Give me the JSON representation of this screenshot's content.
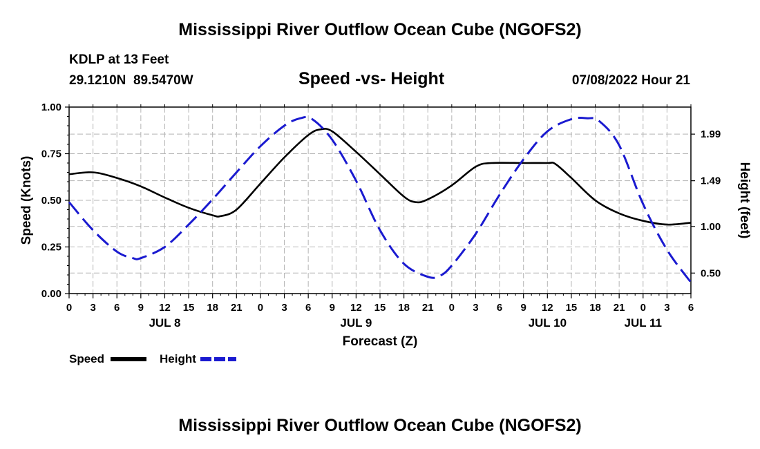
{
  "page": {
    "title_top": "Mississippi River Outflow Ocean Cube (NGOFS2)",
    "title_bottom": "Mississippi River Outflow Ocean Cube (NGOFS2)",
    "station": "KDLP at 13 Feet",
    "coords": "29.1210N  89.5470W",
    "subtitle": "Speed -vs- Height",
    "date": "07/08/2022 Hour 21"
  },
  "chart_data": {
    "type": "line",
    "title": "Speed -vs- Height",
    "xlabel": "Forecast (Z)",
    "ylabel": "Speed (Knots)",
    "y2label": "Height (feet)",
    "x_hours": [
      0,
      78
    ],
    "x_tick_labels": [
      "0",
      "3",
      "6",
      "9",
      "12",
      "15",
      "18",
      "21",
      "0",
      "3",
      "6",
      "9",
      "12",
      "15",
      "18",
      "21",
      "0",
      "3",
      "6",
      "9",
      "12",
      "15",
      "18",
      "21",
      "0",
      "3",
      "6"
    ],
    "day_labels": [
      {
        "hour": 12,
        "label": "JUL 8"
      },
      {
        "hour": 36,
        "label": "JUL 9"
      },
      {
        "hour": 60,
        "label": "JUL 10"
      },
      {
        "hour": 72,
        "label": "JUL 11"
      }
    ],
    "ylim": [
      0,
      1
    ],
    "y_tick_labels": [
      "0.00",
      "0.25",
      "0.50",
      "0.75",
      "1.00"
    ],
    "y2lim": [
      0.28,
      2.28
    ],
    "y2_ticks": [
      0.5,
      1.0,
      1.49,
      1.99
    ],
    "y2_tick_labels": [
      "0.50",
      "1.00",
      "1.49",
      "1.99"
    ],
    "grid": true,
    "legend": [
      "Speed",
      "Height"
    ],
    "series": [
      {
        "name": "Speed",
        "axis": "left",
        "color": "#000000",
        "style": "solid",
        "x": [
          0,
          3,
          6,
          9,
          12,
          15,
          18,
          19,
          21,
          24,
          27,
          30,
          31.5,
          33,
          36,
          39,
          42,
          43.5,
          45,
          48,
          51,
          53,
          57,
          60,
          61,
          63,
          66,
          69,
          72,
          75,
          78
        ],
        "values": [
          0.64,
          0.65,
          0.62,
          0.575,
          0.515,
          0.46,
          0.42,
          0.415,
          0.45,
          0.59,
          0.73,
          0.85,
          0.88,
          0.87,
          0.76,
          0.64,
          0.52,
          0.49,
          0.505,
          0.58,
          0.68,
          0.7,
          0.7,
          0.7,
          0.695,
          0.62,
          0.5,
          0.43,
          0.39,
          0.37,
          0.38
        ]
      },
      {
        "name": "Height",
        "axis": "right",
        "color": "#1a1ad0",
        "style": "dashed",
        "x": [
          0,
          3,
          6,
          8,
          9,
          12,
          15,
          18,
          21,
          24,
          27,
          29,
          30.5,
          33,
          36,
          39,
          42,
          45,
          46.5,
          48,
          51,
          54,
          57,
          60,
          63,
          65,
          66.5,
          69,
          72,
          75,
          78
        ],
        "values": [
          1.26,
          0.96,
          0.73,
          0.66,
          0.66,
          0.78,
          1.02,
          1.29,
          1.58,
          1.86,
          2.08,
          2.16,
          2.15,
          1.93,
          1.49,
          0.96,
          0.6,
          0.46,
          0.47,
          0.58,
          0.92,
          1.34,
          1.72,
          2.02,
          2.15,
          2.16,
          2.13,
          1.87,
          1.24,
          0.75,
          0.4
        ]
      }
    ]
  }
}
